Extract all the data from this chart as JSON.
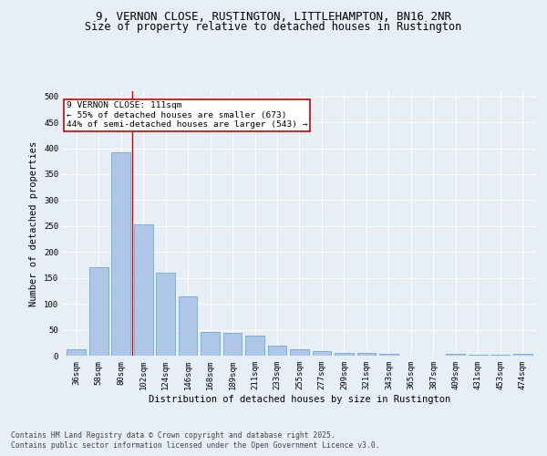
{
  "title_line1": "9, VERNON CLOSE, RUSTINGTON, LITTLEHAMPTON, BN16 2NR",
  "title_line2": "Size of property relative to detached houses in Rustington",
  "xlabel": "Distribution of detached houses by size in Rustington",
  "ylabel": "Number of detached properties",
  "footer_line1": "Contains HM Land Registry data © Crown copyright and database right 2025.",
  "footer_line2": "Contains public sector information licensed under the Open Government Licence v3.0.",
  "categories": [
    "36sqm",
    "58sqm",
    "80sqm",
    "102sqm",
    "124sqm",
    "146sqm",
    "168sqm",
    "189sqm",
    "211sqm",
    "233sqm",
    "255sqm",
    "277sqm",
    "299sqm",
    "321sqm",
    "343sqm",
    "365sqm",
    "387sqm",
    "409sqm",
    "431sqm",
    "453sqm",
    "474sqm"
  ],
  "values": [
    12,
    170,
    393,
    253,
    160,
    115,
    45,
    44,
    38,
    19,
    13,
    8,
    6,
    5,
    3,
    0,
    0,
    4,
    1,
    1,
    3
  ],
  "bar_color": "#aec6e8",
  "bar_edgecolor": "#5a9fd4",
  "annotation_box_text": "9 VERNON CLOSE: 111sqm\n← 55% of detached houses are smaller (673)\n44% of semi-detached houses are larger (543) →",
  "annotation_box_color": "#cc0000",
  "property_line_x": 2.5,
  "ylim": [
    0,
    510
  ],
  "yticks": [
    0,
    50,
    100,
    150,
    200,
    250,
    300,
    350,
    400,
    450,
    500
  ],
  "bg_color": "#e8eef5",
  "plot_bg_color": "#e8eef5",
  "grid_color": "#ffffff",
  "title_fontsize": 9,
  "subtitle_fontsize": 8.5,
  "axis_label_fontsize": 7.5,
  "tick_fontsize": 6.5,
  "annotation_fontsize": 6.8,
  "footer_fontsize": 5.8
}
